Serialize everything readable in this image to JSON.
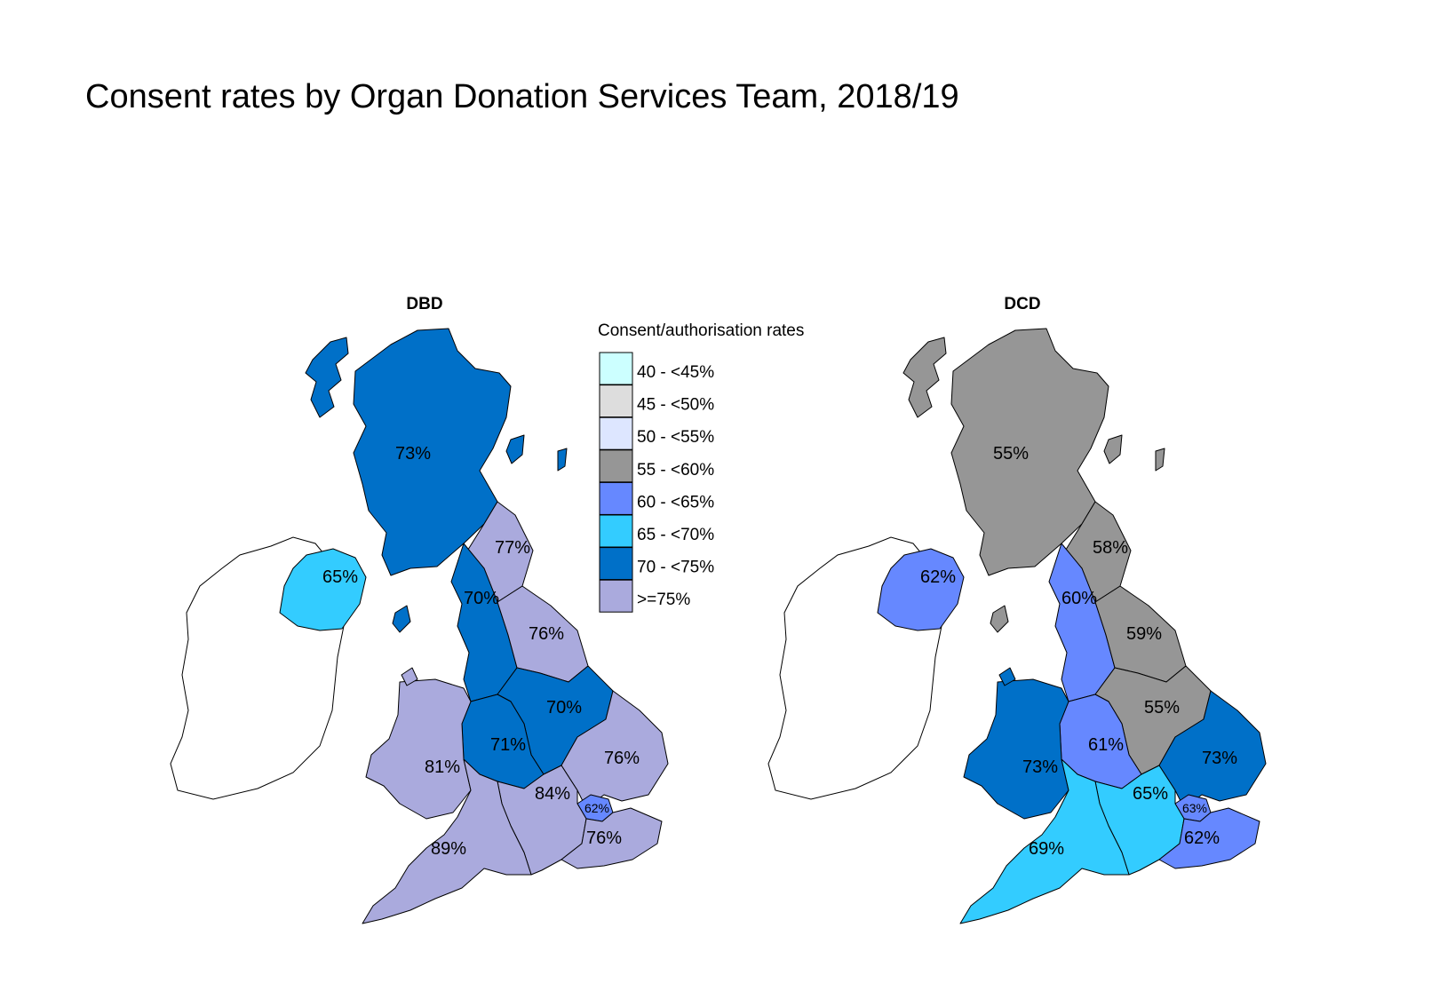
{
  "title": "Consent rates by Organ Donation Services Team, 2018/19",
  "legend": {
    "title": "Consent/authorisation rates",
    "items": [
      {
        "label": "40 - <45%",
        "color": "#ccffff"
      },
      {
        "label": "45 - <50%",
        "color": "#dddddd"
      },
      {
        "label": "50 - <55%",
        "color": "#dde6ff"
      },
      {
        "label": "55 - <60%",
        "color": "#969696"
      },
      {
        "label": "60 - <65%",
        "color": "#6688ff"
      },
      {
        "label": "65 - <70%",
        "color": "#33ccff"
      },
      {
        "label": "70 - <75%",
        "color": "#0070c8"
      },
      {
        "label": ">=75%",
        "color": "#aaaadd"
      }
    ]
  },
  "maps": [
    {
      "title": "DBD",
      "regions": {
        "scotland": "73%",
        "northern_ireland": "65%",
        "north_east": "77%",
        "north_west": "70%",
        "yorkshire": "76%",
        "midlands": "70%",
        "west_midlands": "71%",
        "wales": "81%",
        "eastern": "76%",
        "south_central": "84%",
        "london": "62%",
        "south_east": "76%",
        "south_west": "89%"
      }
    },
    {
      "title": "DCD",
      "regions": {
        "scotland": "55%",
        "northern_ireland": "62%",
        "north_east": "58%",
        "north_west": "60%",
        "yorkshire": "59%",
        "midlands": "55%",
        "west_midlands": "61%",
        "wales": "73%",
        "eastern": "73%",
        "south_central": "65%",
        "london": "63%",
        "south_east": "62%",
        "south_west": "69%"
      }
    }
  ]
}
